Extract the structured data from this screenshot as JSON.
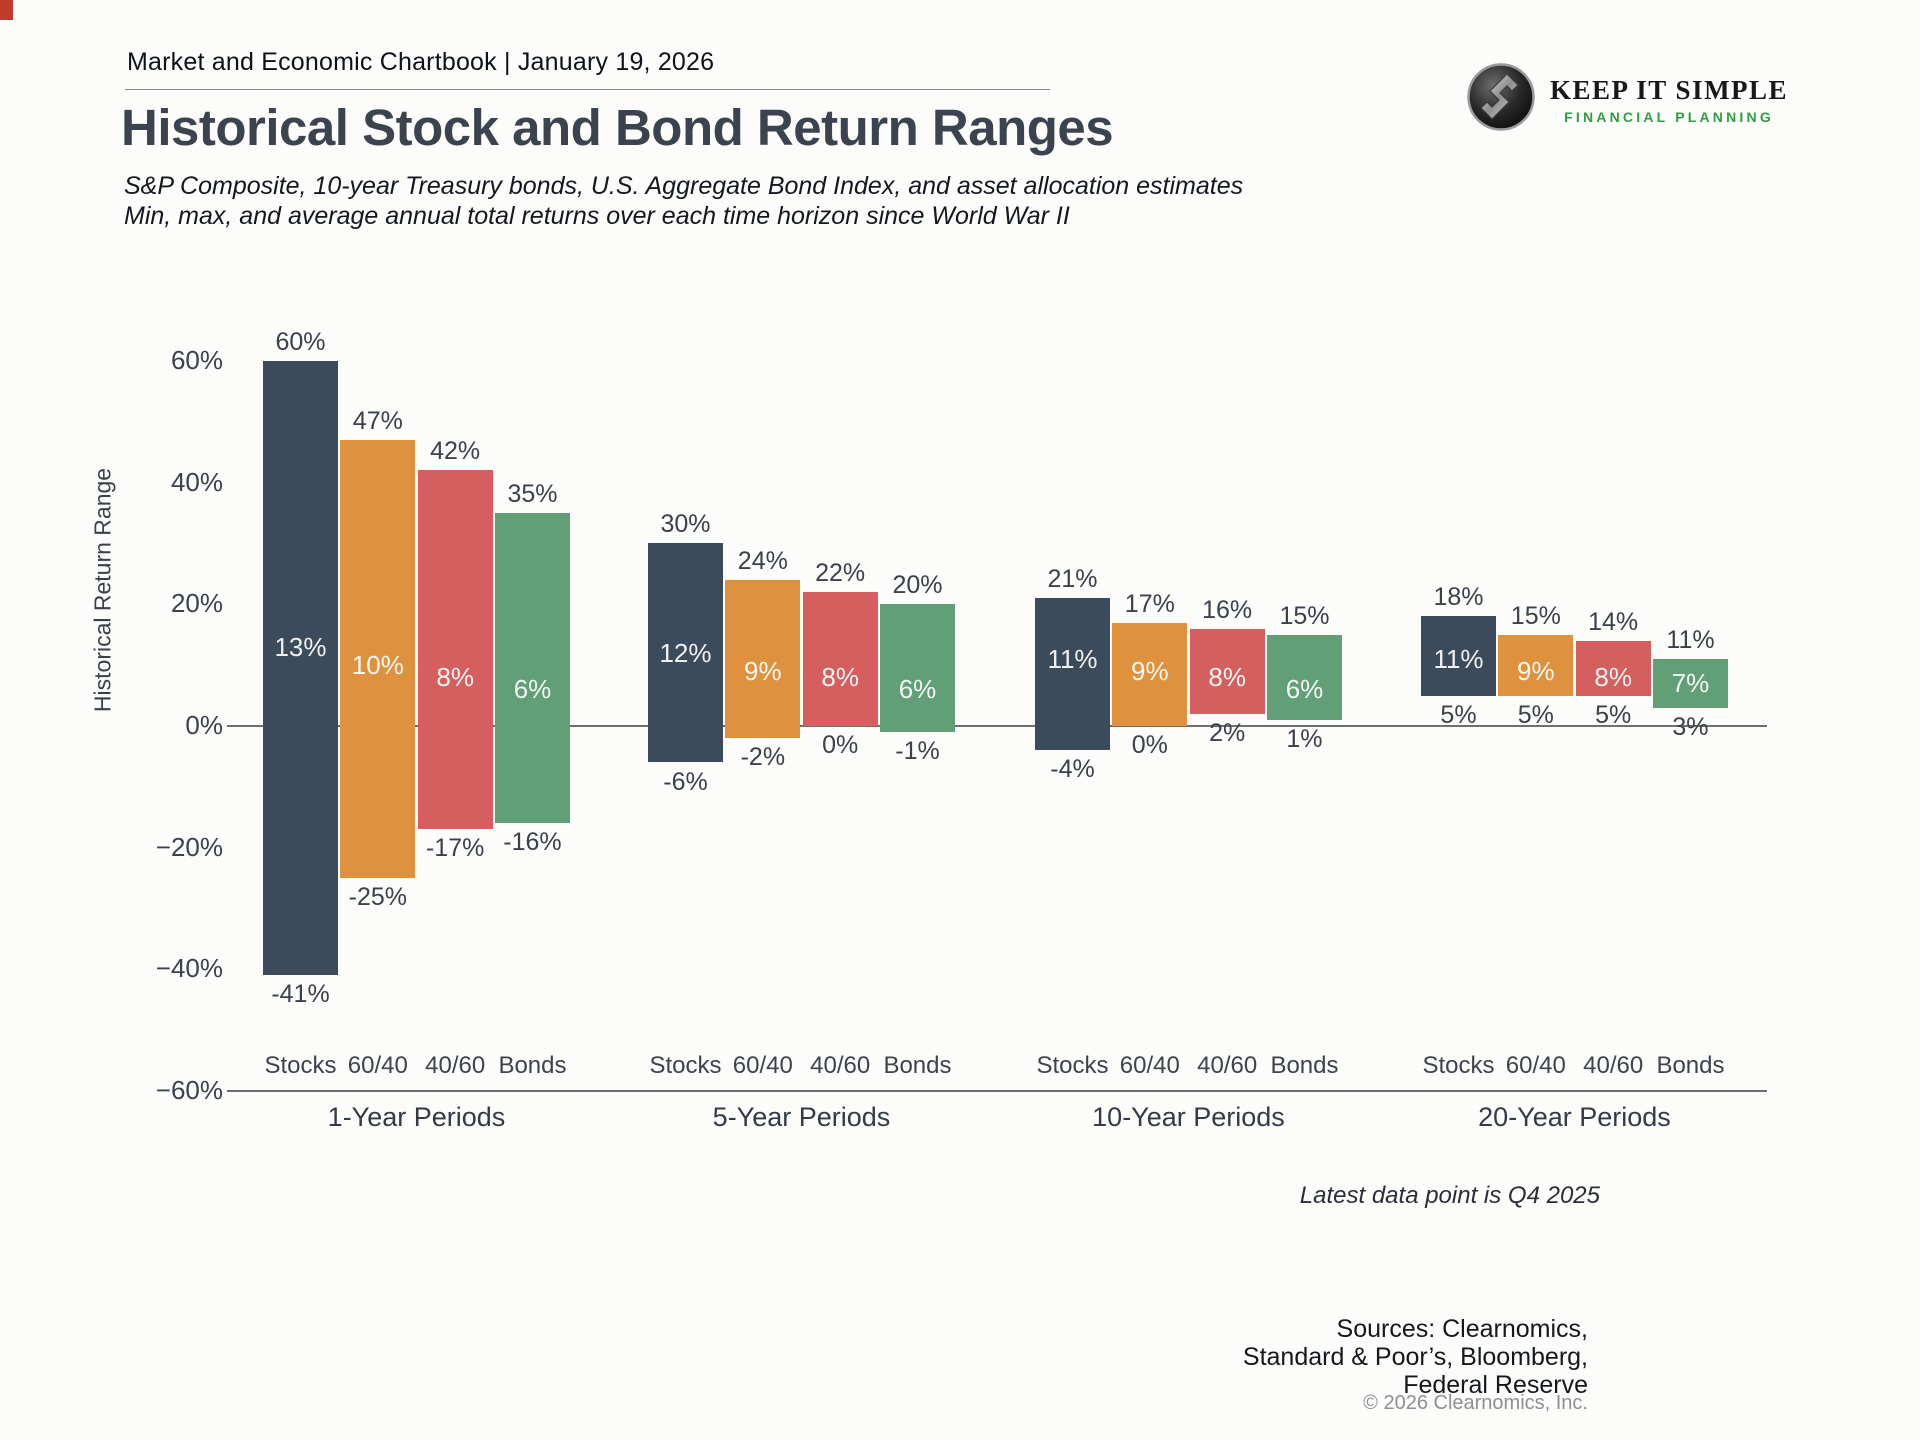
{
  "header": {
    "chartbook": "Market and Economic Chartbook | January 19, 2026"
  },
  "logo": {
    "name": "KEEP IT SIMPLE",
    "tagline": "FINANCIAL PLANNING",
    "accent_green": "#2f9e41"
  },
  "title": "Historical Stock and Bond Return Ranges",
  "subtitle_line1": "S&P Composite, 10-year Treasury bonds, U.S. Aggregate Bond Index, and asset allocation estimates",
  "subtitle_line2": "Min, max, and average annual total returns over each time horizon since World War II",
  "footnote": "Latest data point is Q4 2025",
  "sources": [
    "Sources: Clearnomics,",
    "Standard & Poor’s, Bloomberg,",
    "Federal Reserve"
  ],
  "copyright": "© 2026 Clearnomics, Inc.",
  "chart_data": {
    "type": "bar",
    "variant": "floating-range-min-max-avg",
    "title": "Historical Stock and Bond Return Ranges",
    "xlabel": "",
    "ylabel": "Historical Return Range",
    "ylim": [
      -60,
      65
    ],
    "grid": false,
    "legend_position": "none",
    "axis_color": "#6f6f6f",
    "label_color": "#3c424b",
    "yticks": [
      {
        "v": 60,
        "label": "60%"
      },
      {
        "v": 40,
        "label": "40%"
      },
      {
        "v": 20,
        "label": "20%"
      },
      {
        "v": 0,
        "label": "0%"
      },
      {
        "v": -20,
        "label": "−20%"
      },
      {
        "v": -40,
        "label": "−40%"
      },
      {
        "v": -60,
        "label": "−60%"
      }
    ],
    "categories": [
      "Stocks",
      "60/40",
      "40/60",
      "Bonds"
    ],
    "series_colors": {
      "Stocks": "#3c4b5c",
      "60/40": "#df923d",
      "40/60": "#d55f5f",
      "Bonds": "#61a076"
    },
    "groups": [
      {
        "label": "1-Year Periods",
        "bars": [
          {
            "name": "Stocks",
            "max": 60,
            "avg": 13,
            "min": -41,
            "max_label": "60%",
            "avg_label": "13%",
            "min_label": "-41%"
          },
          {
            "name": "60/40",
            "max": 47,
            "avg": 10,
            "min": -25,
            "max_label": "47%",
            "avg_label": "10%",
            "min_label": "-25%"
          },
          {
            "name": "40/60",
            "max": 42,
            "avg": 8,
            "min": -17,
            "max_label": "42%",
            "avg_label": "8%",
            "min_label": "-17%"
          },
          {
            "name": "Bonds",
            "max": 35,
            "avg": 6,
            "min": -16,
            "max_label": "35%",
            "avg_label": "6%",
            "min_label": "-16%"
          }
        ]
      },
      {
        "label": "5-Year Periods",
        "bars": [
          {
            "name": "Stocks",
            "max": 30,
            "avg": 12,
            "min": -6,
            "max_label": "30%",
            "avg_label": "12%",
            "min_label": "-6%"
          },
          {
            "name": "60/40",
            "max": 24,
            "avg": 9,
            "min": -2,
            "max_label": "24%",
            "avg_label": "9%",
            "min_label": "-2%"
          },
          {
            "name": "40/60",
            "max": 22,
            "avg": 8,
            "min": 0,
            "max_label": "22%",
            "avg_label": "8%",
            "min_label": "0%"
          },
          {
            "name": "Bonds",
            "max": 20,
            "avg": 6,
            "min": -1,
            "max_label": "20%",
            "avg_label": "6%",
            "min_label": "-1%"
          }
        ]
      },
      {
        "label": "10-Year Periods",
        "bars": [
          {
            "name": "Stocks",
            "max": 21,
            "avg": 11,
            "min": -4,
            "max_label": "21%",
            "avg_label": "11%",
            "min_label": "-4%"
          },
          {
            "name": "60/40",
            "max": 17,
            "avg": 9,
            "min": 0,
            "max_label": "17%",
            "avg_label": "9%",
            "min_label": "0%"
          },
          {
            "name": "40/60",
            "max": 16,
            "avg": 8,
            "min": 2,
            "max_label": "16%",
            "avg_label": "8%",
            "min_label": "2%"
          },
          {
            "name": "Bonds",
            "max": 15,
            "avg": 6,
            "min": 1,
            "max_label": "15%",
            "avg_label": "6%",
            "min_label": "1%"
          }
        ]
      },
      {
        "label": "20-Year Periods",
        "bars": [
          {
            "name": "Stocks",
            "max": 18,
            "avg": 11,
            "min": 5,
            "max_label": "18%",
            "avg_label": "11%",
            "min_label": "5%"
          },
          {
            "name": "60/40",
            "max": 15,
            "avg": 9,
            "min": 5,
            "max_label": "15%",
            "avg_label": "9%",
            "min_label": "5%"
          },
          {
            "name": "40/60",
            "max": 14,
            "avg": 8,
            "min": 5,
            "max_label": "14%",
            "avg_label": "8%",
            "min_label": "5%"
          },
          {
            "name": "Bonds",
            "max": 11,
            "avg": 7,
            "min": 3,
            "max_label": "11%",
            "avg_label": "7%",
            "min_label": "3%"
          }
        ]
      }
    ]
  }
}
